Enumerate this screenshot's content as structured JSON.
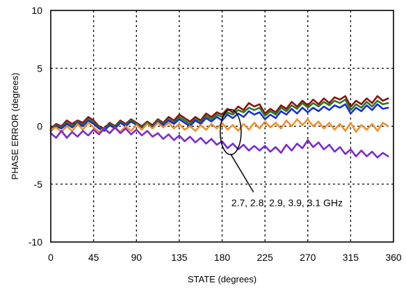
{
  "chart_data": {
    "type": "line",
    "title": "",
    "xlabel": "STATE (degrees)",
    "ylabel": "PHASE ERROR  (degrees)",
    "xlim": [
      0,
      360
    ],
    "ylim": [
      -10,
      10
    ],
    "xticks": [
      "0",
      "45",
      "90",
      "135",
      "180",
      "225",
      "270",
      "315",
      "360"
    ],
    "yticks": [
      "10",
      "5",
      "0",
      "-5",
      "-10"
    ],
    "grid": true,
    "x": [
      0,
      5.625,
      11.25,
      16.875,
      22.5,
      28.125,
      33.75,
      39.375,
      45,
      50.625,
      56.25,
      61.875,
      67.5,
      73.125,
      78.75,
      84.375,
      90,
      95.625,
      101.25,
      106.875,
      112.5,
      118.125,
      123.75,
      129.375,
      135,
      140.625,
      146.25,
      151.875,
      157.5,
      163.125,
      168.75,
      174.375,
      180,
      185.625,
      191.25,
      196.875,
      202.5,
      208.125,
      213.75,
      219.375,
      225,
      230.625,
      236.25,
      241.875,
      247.5,
      253.125,
      258.75,
      264.375,
      270,
      275.625,
      281.25,
      286.875,
      292.5,
      298.125,
      303.75,
      309.375,
      315,
      320.625,
      326.25,
      331.875,
      337.5,
      343.125,
      348.75,
      354.375
    ],
    "series": [
      {
        "color": "#8c1010",
        "values": [
          -0.2,
          0.2,
          0.0,
          0.5,
          0.2,
          0.5,
          0.3,
          0.8,
          0.5,
          0.0,
          -0.2,
          0.3,
          0.0,
          0.5,
          0.2,
          0.6,
          0.3,
          0.0,
          0.4,
          0.1,
          0.6,
          0.3,
          0.8,
          0.5,
          1.0,
          0.7,
          0.4,
          0.8,
          0.5,
          1.1,
          0.8,
          1.2,
          1.0,
          1.5,
          1.2,
          1.7,
          1.4,
          2.0,
          1.7,
          1.9,
          1.1,
          1.5,
          1.2,
          1.8,
          1.5,
          2.1,
          1.7,
          2.2,
          1.8,
          2.3,
          1.9,
          2.4,
          2.0,
          2.5,
          2.3,
          2.6,
          1.7,
          2.2,
          1.9,
          2.4,
          2.0,
          2.6,
          2.2,
          2.4
        ]
      },
      {
        "color": "#2a7a1f",
        "values": [
          -0.3,
          0.1,
          -0.1,
          0.3,
          0.0,
          0.4,
          0.1,
          0.6,
          0.3,
          -0.1,
          -0.3,
          0.2,
          -0.1,
          0.4,
          0.1,
          0.5,
          0.2,
          -0.1,
          0.3,
          0.0,
          0.5,
          0.2,
          0.6,
          0.3,
          0.8,
          0.5,
          0.2,
          0.6,
          0.3,
          0.9,
          0.6,
          1.0,
          0.8,
          1.2,
          1.0,
          1.4,
          1.2,
          1.6,
          1.4,
          1.6,
          0.9,
          1.3,
          1.0,
          1.6,
          1.3,
          1.8,
          1.5,
          2.0,
          1.6,
          2.0,
          1.7,
          2.1,
          1.8,
          2.2,
          2.0,
          2.3,
          1.4,
          1.9,
          1.6,
          2.1,
          1.7,
          2.2,
          1.9,
          2.0
        ]
      },
      {
        "color": "#1a2fd0",
        "values": [
          -0.4,
          0.0,
          -0.2,
          0.2,
          -0.1,
          0.3,
          0.0,
          0.5,
          0.2,
          -0.2,
          -0.4,
          0.1,
          -0.2,
          0.3,
          0.0,
          0.4,
          0.1,
          -0.2,
          0.2,
          -0.1,
          0.4,
          0.1,
          0.5,
          0.2,
          0.6,
          0.3,
          0.0,
          0.5,
          0.2,
          0.7,
          0.4,
          0.8,
          0.5,
          1.0,
          0.7,
          1.1,
          0.8,
          1.3,
          1.0,
          1.2,
          0.6,
          1.0,
          0.7,
          1.3,
          1.0,
          1.5,
          1.1,
          1.6,
          1.2,
          1.6,
          1.3,
          1.7,
          1.4,
          1.8,
          1.6,
          1.9,
          1.1,
          1.6,
          1.3,
          1.8,
          1.4,
          1.9,
          1.5,
          1.6
        ]
      },
      {
        "color": "#f0902a",
        "values": [
          -0.3,
          -0.1,
          -0.5,
          0.0,
          -0.4,
          0.2,
          -0.3,
          0.3,
          -0.1,
          -0.5,
          -0.2,
          -0.6,
          -0.1,
          -0.5,
          0.0,
          -0.4,
          0.1,
          -0.3,
          0.2,
          -0.2,
          0.3,
          -0.1,
          0.3,
          -0.2,
          0.2,
          -0.3,
          0.0,
          -0.4,
          0.1,
          -0.3,
          0.2,
          -0.2,
          0.3,
          -0.3,
          0.1,
          -0.4,
          0.2,
          -0.3,
          0.3,
          -0.2,
          0.4,
          -0.1,
          0.3,
          -0.2,
          0.5,
          0.0,
          0.6,
          0.1,
          0.6,
          0.0,
          0.4,
          -0.2,
          0.3,
          -0.3,
          0.2,
          -0.4,
          0.3,
          -0.5,
          0.1,
          -0.3,
          0.2,
          -0.4,
          0.3,
          0.0
        ]
      },
      {
        "color": "#7a2ad0",
        "values": [
          -0.6,
          -1.0,
          -0.4,
          -1.0,
          -0.5,
          -0.9,
          -0.4,
          -0.8,
          -0.3,
          -0.7,
          -0.2,
          -0.6,
          -0.1,
          -0.6,
          -0.2,
          -0.7,
          -0.3,
          -0.8,
          -0.4,
          -0.9,
          -0.6,
          -1.1,
          -0.7,
          -1.2,
          -0.8,
          -1.3,
          -0.9,
          -1.4,
          -1.0,
          -1.5,
          -1.1,
          -1.6,
          -1.3,
          -1.9,
          -1.5,
          -2.0,
          -1.6,
          -2.1,
          -1.7,
          -2.1,
          -1.7,
          -2.2,
          -1.8,
          -2.3,
          -1.6,
          -2.1,
          -1.5,
          -1.9,
          -1.2,
          -1.8,
          -1.4,
          -2.0,
          -1.6,
          -2.2,
          -1.8,
          -2.4,
          -2.0,
          -2.6,
          -2.1,
          -2.6,
          -2.2,
          -2.7,
          -2.3,
          -2.6
        ]
      }
    ],
    "annotation": {
      "text": "2.7, 2.8, 2.9, 3.9, 3.1 GHz",
      "ellipse_center": [
        189,
        -0.5
      ],
      "ellipse_radius": [
        11,
        1.95
      ],
      "arrow_from": [
        189,
        -2.4
      ],
      "arrow_to": [
        213,
        -5.7
      ]
    }
  }
}
